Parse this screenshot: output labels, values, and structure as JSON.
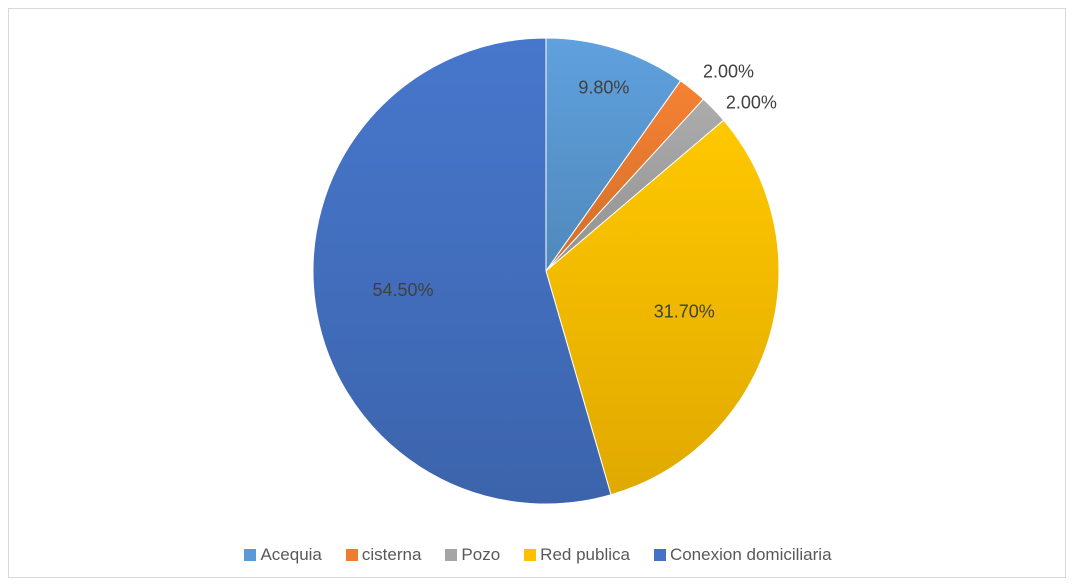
{
  "chart_data": {
    "type": "pie",
    "title": "",
    "categories": [
      "Acequia",
      "cisterna",
      "Pozo",
      "Red publica",
      "Conexion domiciliaria"
    ],
    "values": [
      9.8,
      2.0,
      2.0,
      31.7,
      54.5
    ],
    "labels": [
      "9.80%",
      "2.00%",
      "2.00%",
      "31.70%",
      "54.50%"
    ],
    "colors": [
      "#5b9bd5",
      "#ed7d31",
      "#a5a5a5",
      "#ffc000",
      "#4472c4"
    ],
    "legend_position": "bottom",
    "start_angle": "12 o'clock",
    "direction": "clockwise"
  }
}
